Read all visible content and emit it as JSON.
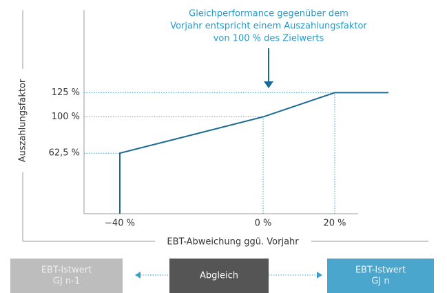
{
  "chart_data": {
    "type": "line",
    "annotation": [
      "Gleichperformance gegenüber dem",
      "Vorjahr entspricht einem Auszahlungsfaktor",
      "von 100 % des Zielwerts"
    ],
    "x_label": "EBT-Abweichung ggü. Vorjahr",
    "y_label": "Auszahlungsfaktor",
    "series": [
      {
        "color": "#1b6b96",
        "x": [
          -40,
          -40,
          0,
          20,
          35
        ],
        "values": [
          0,
          62.5,
          100,
          125,
          125
        ]
      }
    ],
    "xlim": [
      -50,
      40
    ],
    "xticks": [
      {
        "value": -40,
        "label": "−40 %"
      },
      {
        "value": 0,
        "label": "0 %"
      },
      {
        "value": 20,
        "label": "20 %"
      }
    ],
    "ylim": [
      0,
      210
    ],
    "yticks": [
      {
        "value": 62.5,
        "label": "62,5 %"
      },
      {
        "value": 100,
        "label": "100 %"
      },
      {
        "value": 125,
        "label": "125 %"
      }
    ],
    "guide_color": "#3aa0c8"
  },
  "flow": {
    "boxes": [
      {
        "lines": [
          "EBT-Istwert",
          "GJ n-1"
        ],
        "color": "#bdbdbd",
        "text_color": "#eeeeee"
      },
      {
        "lines": [
          "Abgleich"
        ],
        "color": "#555555",
        "text_color": "#ffffff"
      },
      {
        "lines": [
          "EBT-Istwert",
          "GJ n"
        ],
        "color": "#4aa6cc",
        "text_color": "#e6f4fa"
      }
    ]
  }
}
